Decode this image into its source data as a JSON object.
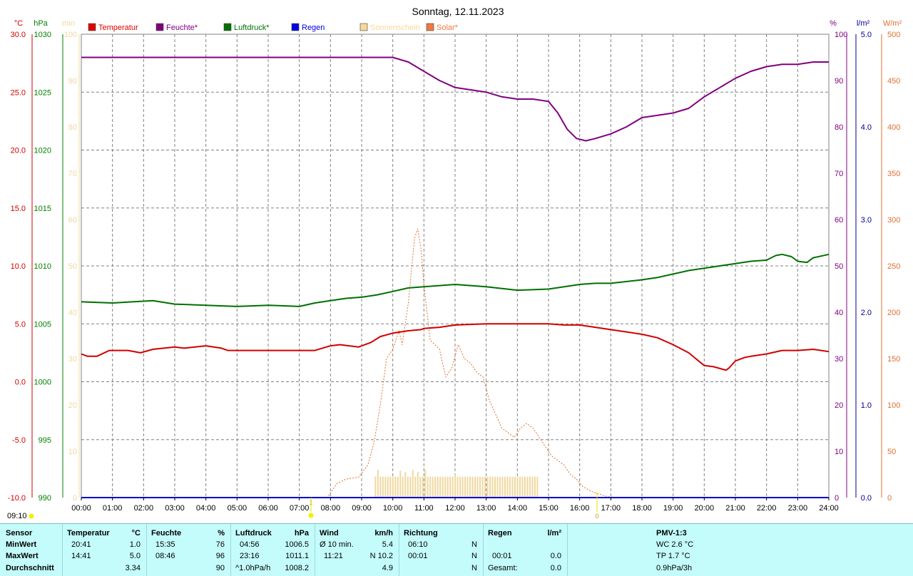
{
  "title": "Sonntag, 12.11.2023",
  "legend": [
    {
      "name": "Temperatur",
      "color": "#e00000"
    },
    {
      "name": "Feuchte*",
      "color": "#800080"
    },
    {
      "name": "Luftdruck*",
      "color": "#007000"
    },
    {
      "name": "Regen",
      "color": "#0000e0"
    },
    {
      "name": "Sonnenschein",
      "color": "#f8d898"
    },
    {
      "name": "Solar*",
      "color": "#f07840"
    }
  ],
  "axis_units": {
    "temp": "°C",
    "pressure": "hPa",
    "minutes": "min",
    "humidity": "%",
    "rain": "l/m²",
    "solar": "W/m²"
  },
  "colors": {
    "temp": "#d00000",
    "pressure": "#008000",
    "minutes": "#f0d8a0",
    "humidity": "#800080",
    "rain": "#000090",
    "solar": "#e07030",
    "grid": "#808080"
  },
  "markers": {
    "sunrise_time": "09:10",
    "sunrise_label": "1",
    "sunset_label": "0"
  },
  "chart_data": {
    "type": "line",
    "x_range": [
      "00:00",
      "24:00"
    ],
    "x_ticks": [
      "00:00",
      "01:00",
      "02:00",
      "03:00",
      "04:00",
      "05:00",
      "06:00",
      "07:00",
      "08:00",
      "09:00",
      "10:00",
      "11:00",
      "12:00",
      "13:00",
      "14:00",
      "15:00",
      "16:00",
      "17:00",
      "18:00",
      "19:00",
      "20:00",
      "21:00",
      "22:00",
      "23:00",
      "24:00"
    ],
    "axes": {
      "temp": {
        "range": [
          -10,
          30
        ],
        "ticks": [
          "-10.0",
          "-5.0",
          "0.0",
          "5.0",
          "10.0",
          "15.0",
          "20.0",
          "25.0",
          "30.0"
        ]
      },
      "pressure": {
        "range": [
          990,
          1030
        ],
        "ticks": [
          "990",
          "995",
          "1000",
          "1005",
          "1010",
          "1015",
          "1020",
          "1025",
          "1030"
        ]
      },
      "minutes": {
        "range": [
          0,
          100
        ],
        "ticks": [
          "0",
          "10",
          "20",
          "30",
          "40",
          "50",
          "60",
          "70",
          "80",
          "90",
          "100"
        ]
      },
      "humidity": {
        "range": [
          0,
          100
        ],
        "ticks": [
          "0",
          "10",
          "20",
          "30",
          "40",
          "50",
          "60",
          "70",
          "80",
          "90",
          "100"
        ]
      },
      "rain": {
        "range": [
          0,
          5
        ],
        "ticks": [
          "0.0",
          "1.0",
          "2.0",
          "3.0",
          "4.0",
          "5.0"
        ]
      },
      "solar": {
        "range": [
          0,
          500
        ],
        "ticks": [
          "0",
          "50",
          "100",
          "150",
          "200",
          "250",
          "300",
          "350",
          "400",
          "450",
          "500"
        ]
      }
    },
    "series": [
      {
        "name": "Temperatur",
        "axis": "temp",
        "x": [
          0,
          0.2,
          0.5,
          0.9,
          1.5,
          1.9,
          2.3,
          3,
          3.3,
          4,
          4.5,
          4.7,
          5,
          6,
          7,
          7.5,
          8,
          8.3,
          8.9,
          9.3,
          9.6,
          10,
          10.5,
          10.9,
          11,
          11.5,
          12,
          13,
          14,
          15,
          15.5,
          16,
          16.5,
          17,
          17.5,
          18,
          18.5,
          19,
          19.5,
          20,
          20.3,
          20.7,
          20.8,
          21,
          21.3,
          21.5,
          22,
          22.5,
          23,
          23.5,
          24
        ],
        "values": [
          2.4,
          2.2,
          2.2,
          2.7,
          2.7,
          2.5,
          2.8,
          3,
          2.9,
          3.1,
          2.9,
          2.7,
          2.7,
          2.7,
          2.7,
          2.7,
          3.1,
          3.2,
          3,
          3.4,
          3.9,
          4.2,
          4.4,
          4.5,
          4.6,
          4.7,
          4.9,
          5,
          5,
          5,
          4.9,
          4.9,
          4.7,
          4.5,
          4.3,
          4.1,
          3.8,
          3.2,
          2.5,
          1.4,
          1.3,
          1.0,
          1.2,
          1.8,
          2.1,
          2.2,
          2.4,
          2.7,
          2.7,
          2.8,
          2.6
        ]
      },
      {
        "name": "Feuchte*",
        "axis": "humidity",
        "x": [
          0,
          3,
          6,
          8.7,
          9,
          9.5,
          10,
          10.5,
          11,
          11.5,
          12,
          12.5,
          13,
          13.5,
          14,
          14.5,
          15,
          15.3,
          15.6,
          15.9,
          16.2,
          16.5,
          17,
          17.5,
          18,
          18.5,
          19,
          19.5,
          20,
          20.5,
          21,
          21.5,
          22,
          22.5,
          23,
          23.5,
          24
        ],
        "values": [
          95,
          95,
          95,
          95,
          95,
          95,
          95,
          94,
          92,
          90,
          88.5,
          88,
          87.5,
          86.5,
          86,
          86,
          85.5,
          83,
          79.5,
          77.5,
          77,
          77.5,
          78.5,
          80,
          82,
          82.5,
          83,
          84,
          86.5,
          88.5,
          90.5,
          92,
          93,
          93.5,
          93.5,
          94,
          94
        ]
      },
      {
        "name": "Luftdruck*",
        "axis": "pressure",
        "x": [
          0,
          1,
          2.3,
          3,
          4,
          5,
          6,
          7,
          7.5,
          8,
          8.5,
          9,
          9.5,
          10,
          10.5,
          11,
          12,
          13,
          14,
          15,
          16,
          16.5,
          17,
          18,
          18.5,
          19,
          19.5,
          20,
          20.5,
          21,
          21.5,
          22,
          22.3,
          22.5,
          22.8,
          23,
          23.3,
          23.5,
          24
        ],
        "values": [
          1006.9,
          1006.8,
          1007.0,
          1006.7,
          1006.6,
          1006.5,
          1006.6,
          1006.5,
          1006.8,
          1007.0,
          1007.2,
          1007.3,
          1007.5,
          1007.8,
          1008.1,
          1008.2,
          1008.4,
          1008.2,
          1007.9,
          1008.0,
          1008.4,
          1008.5,
          1008.5,
          1008.8,
          1009.0,
          1009.3,
          1009.6,
          1009.8,
          1010.0,
          1010.2,
          1010.4,
          1010.5,
          1010.9,
          1011.0,
          1010.8,
          1010.4,
          1010.3,
          1010.7,
          1011.0
        ]
      },
      {
        "name": "Regen",
        "axis": "rain",
        "x": [
          0,
          24
        ],
        "values": [
          0,
          0
        ]
      },
      {
        "name": "Solar*",
        "axis": "solar",
        "x": [
          0,
          7.9,
          8.2,
          8.5,
          8.9,
          9.2,
          9.4,
          9.6,
          9.8,
          10,
          10.2,
          10.3,
          10.5,
          10.7,
          10.8,
          10.9,
          11,
          11.2,
          11.5,
          11.7,
          11.9,
          12.1,
          12.3,
          12.5,
          12.7,
          12.9,
          13.1,
          13.3,
          13.5,
          13.7,
          13.9,
          14.1,
          14.3,
          14.5,
          14.7,
          14.9,
          15.1,
          15.3,
          15.5,
          15.7,
          15.9,
          16.1,
          16.3,
          16.5,
          16.7,
          16.9,
          17.2,
          24
        ],
        "values": [
          0,
          0,
          15,
          20,
          22,
          35,
          60,
          100,
          150,
          160,
          180,
          165,
          210,
          280,
          290,
          270,
          230,
          170,
          160,
          130,
          140,
          165,
          150,
          145,
          135,
          130,
          105,
          90,
          75,
          70,
          65,
          75,
          80,
          75,
          65,
          55,
          45,
          40,
          35,
          25,
          20,
          12,
          8,
          5,
          3,
          1,
          0,
          0
        ]
      }
    ],
    "bars": {
      "name": "Sonnenschein",
      "axis": "minutes",
      "x_start": 9.42,
      "x_end": 14.7,
      "step": 0.08,
      "base_value": 4.5,
      "peaks": [
        [
          9.5,
          6
        ],
        [
          10.2,
          5.8
        ],
        [
          10.4,
          5.5
        ],
        [
          10.6,
          6
        ],
        [
          10.8,
          5.5
        ],
        [
          11.0,
          6
        ],
        [
          12.0,
          5
        ]
      ]
    }
  },
  "stats": {
    "sensor": {
      "header": "Sensor",
      "rows": [
        "MinWert",
        "MaxWert",
        "Durchschnitt"
      ]
    },
    "temperatur": {
      "header": "Temperatur",
      "unit": "°C",
      "rows": [
        [
          "20:41",
          "1.0"
        ],
        [
          "14:41",
          "5.0"
        ],
        [
          "",
          "3.34"
        ]
      ]
    },
    "feuchte": {
      "header": "Feuchte",
      "unit": "%",
      "rows": [
        [
          "15:35",
          "76"
        ],
        [
          "08:46",
          "96"
        ],
        [
          "",
          "90"
        ]
      ]
    },
    "luftdruck": {
      "header": "Luftdruck",
      "unit": "hPa",
      "rows": [
        [
          "04:56",
          "1006.5"
        ],
        [
          "23:16",
          "1011.1"
        ],
        [
          "^1.0hPa/h",
          "1008.2"
        ]
      ]
    },
    "wind": {
      "header": "Wind",
      "unit": "km/h",
      "rows": [
        [
          "Ø 10 min.",
          "5.4"
        ],
        [
          "11:21",
          "N 10.2"
        ],
        [
          "",
          "4.9"
        ]
      ]
    },
    "richtung": {
      "header": "Richtung",
      "rows": [
        [
          "06:10",
          "N"
        ],
        [
          "00:01",
          "N"
        ],
        [
          "",
          "N"
        ]
      ]
    },
    "regen": {
      "header": "Regen",
      "unit": "l/m²",
      "rows": [
        [
          "",
          ""
        ],
        [
          "00:01",
          "0.0"
        ],
        [
          "Gesamt:",
          "0.0"
        ]
      ]
    },
    "pmv": {
      "header": "PMV-1:3",
      "rows": [
        "WC 2.6 °C",
        "TP 1.7 °C",
        "0.9hPa/3h"
      ]
    }
  }
}
